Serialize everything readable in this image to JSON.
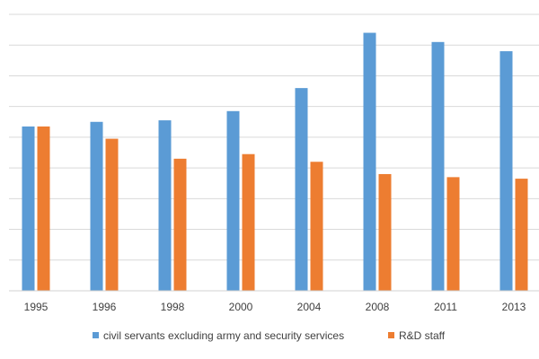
{
  "chart_data": {
    "type": "bar",
    "title": "",
    "xlabel": "",
    "ylabel": "",
    "y_tick_labels_visible": false,
    "grid": true,
    "gridline_count": 9,
    "ylim": [
      0,
      9
    ],
    "legend_position": "bottom",
    "categories": [
      "1995",
      "1996",
      "1998",
      "2000",
      "2004",
      "2008",
      "2011",
      "2013"
    ],
    "series": [
      {
        "name": "civil servants excluding army and security services",
        "color": "#5b9bd5",
        "values": [
          5.35,
          5.5,
          5.55,
          5.85,
          6.6,
          8.4,
          8.1,
          7.8
        ]
      },
      {
        "name": "R&D staff",
        "color": "#ed7d31",
        "values": [
          5.35,
          4.95,
          4.3,
          4.45,
          4.2,
          3.8,
          3.7,
          3.65
        ]
      }
    ]
  }
}
